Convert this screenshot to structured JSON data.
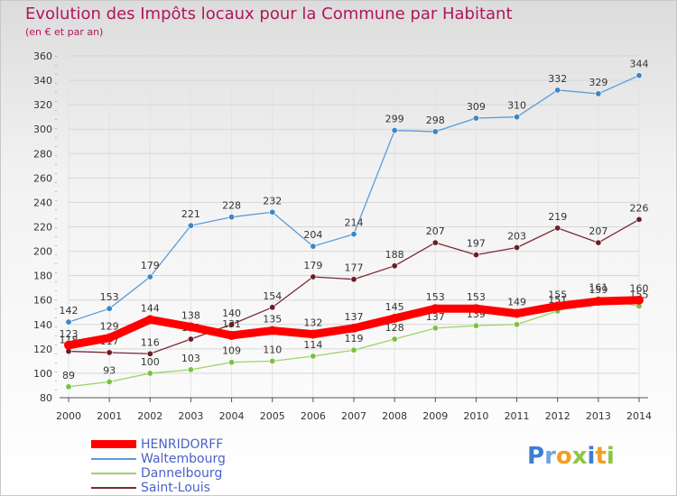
{
  "title": "Evolution des Impôts locaux pour la Commune par Habitant",
  "subtitle": "(en € et par an)",
  "logo": {
    "parts": [
      {
        "text": "P",
        "color": "#3b7fd4"
      },
      {
        "text": "r",
        "color": "#6aa6e6"
      },
      {
        "text": "o",
        "color": "#f0a020"
      },
      {
        "text": "x",
        "color": "#8cc63f"
      },
      {
        "text": "i",
        "color": "#3b7fd4"
      },
      {
        "text": "t",
        "color": "#f0a020"
      },
      {
        "text": "i",
        "color": "#8cc63f"
      }
    ]
  },
  "chart_data": {
    "type": "line",
    "x": [
      "2000",
      "2001",
      "2002",
      "2003",
      "2004",
      "2005",
      "2006",
      "2007",
      "2008",
      "2009",
      "2010",
      "2011",
      "2012",
      "2013",
      "2014"
    ],
    "ylim": [
      80,
      360
    ],
    "yticks": [
      80,
      100,
      120,
      140,
      160,
      180,
      200,
      220,
      240,
      260,
      280,
      300,
      320,
      340,
      360
    ],
    "grid": true,
    "legend_position": "bottom-left",
    "series": [
      {
        "name": "Waltembourg",
        "color": "#5b9bd5",
        "marker": "#3d86c6",
        "values": [
          142,
          153,
          179,
          221,
          228,
          232,
          204,
          214,
          299,
          298,
          309,
          310,
          332,
          329,
          344
        ],
        "label_pos": "above"
      },
      {
        "name": "Saint-Louis",
        "color": "#7a2a33",
        "marker": "#6a1d27",
        "values": [
          118,
          117,
          116,
          128,
          140,
          154,
          179,
          177,
          188,
          207,
          197,
          203,
          219,
          207,
          226
        ],
        "label_pos": "above"
      },
      {
        "name": "Dannelbourg",
        "color": "#9ed36a",
        "marker": "#7cc142",
        "values": [
          89,
          93,
          100,
          103,
          109,
          110,
          114,
          119,
          128,
          137,
          139,
          140,
          151,
          161,
          155
        ],
        "label_pos": "above"
      },
      {
        "name": "HENRIDORFF",
        "color": "#ff0000",
        "marker": "#ff0000",
        "values": [
          123,
          129,
          144,
          138,
          131,
          135,
          132,
          137,
          145,
          153,
          153,
          149,
          155,
          159,
          160
        ],
        "label_pos": "above"
      }
    ],
    "legend_order": [
      "HENRIDORFF",
      "Waltembourg",
      "Dannelbourg",
      "Saint-Louis"
    ]
  }
}
